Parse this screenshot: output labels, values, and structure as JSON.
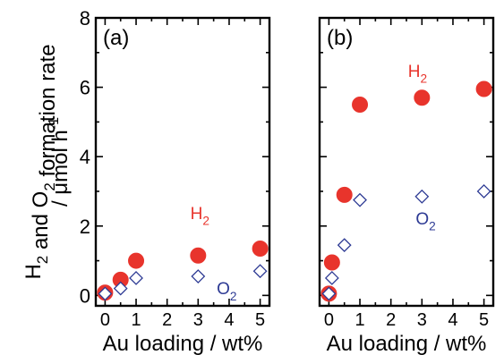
{
  "chart_data": [
    {
      "type": "scatter",
      "panel_label": "(a)",
      "xlabel": "Au loading / wt%",
      "ylabel_line1": "H2 and O2 formation rate",
      "ylabel_line2": "/ μmol h-1",
      "xlim": [
        -0.3,
        5.3
      ],
      "ylim": [
        -0.3,
        8
      ],
      "xticks": [
        0,
        1,
        2,
        3,
        4,
        5
      ],
      "yticks": [
        0,
        2,
        4,
        6,
        8
      ],
      "series": [
        {
          "label": "H2",
          "marker": "filled-circle",
          "color": "#e8342c",
          "x": [
            0,
            0.5,
            1,
            3,
            5
          ],
          "y": [
            0.08,
            0.45,
            1.0,
            1.15,
            1.35
          ]
        },
        {
          "label": "O2",
          "marker": "open-diamond",
          "color": "#2d3a94",
          "x": [
            0,
            0.5,
            1,
            3,
            5
          ],
          "y": [
            0.05,
            0.2,
            0.5,
            0.55,
            0.7
          ]
        }
      ],
      "annotations": [
        {
          "text": "H",
          "sub": "2",
          "series": "H2",
          "near": "x=3 above"
        },
        {
          "text": "O",
          "sub": "2",
          "series": "O2",
          "near": "x=4 below"
        }
      ]
    },
    {
      "type": "scatter",
      "panel_label": "(b)",
      "xlabel": "Au loading / wt%",
      "xlim": [
        -0.3,
        5.3
      ],
      "ylim": [
        -0.3,
        8
      ],
      "xticks": [
        0,
        1,
        2,
        3,
        4,
        5
      ],
      "yticks": [
        0,
        2,
        4,
        6,
        8
      ],
      "series": [
        {
          "label": "H2",
          "marker": "filled-circle",
          "color": "#e8342c",
          "x": [
            0,
            0.1,
            0.5,
            1,
            3,
            5
          ],
          "y": [
            0.05,
            0.95,
            2.9,
            5.5,
            5.7,
            5.95
          ]
        },
        {
          "label": "O2",
          "marker": "open-diamond",
          "color": "#2d3a94",
          "x": [
            0,
            0.1,
            0.5,
            1,
            3,
            5
          ],
          "y": [
            0.05,
            0.5,
            1.45,
            2.75,
            2.85,
            3.0
          ]
        }
      ],
      "annotations": [
        {
          "text": "H",
          "sub": "2",
          "series": "H2",
          "near": "top"
        },
        {
          "text": "O",
          "sub": "2",
          "series": "O2",
          "near": "x=3 below"
        }
      ]
    }
  ]
}
